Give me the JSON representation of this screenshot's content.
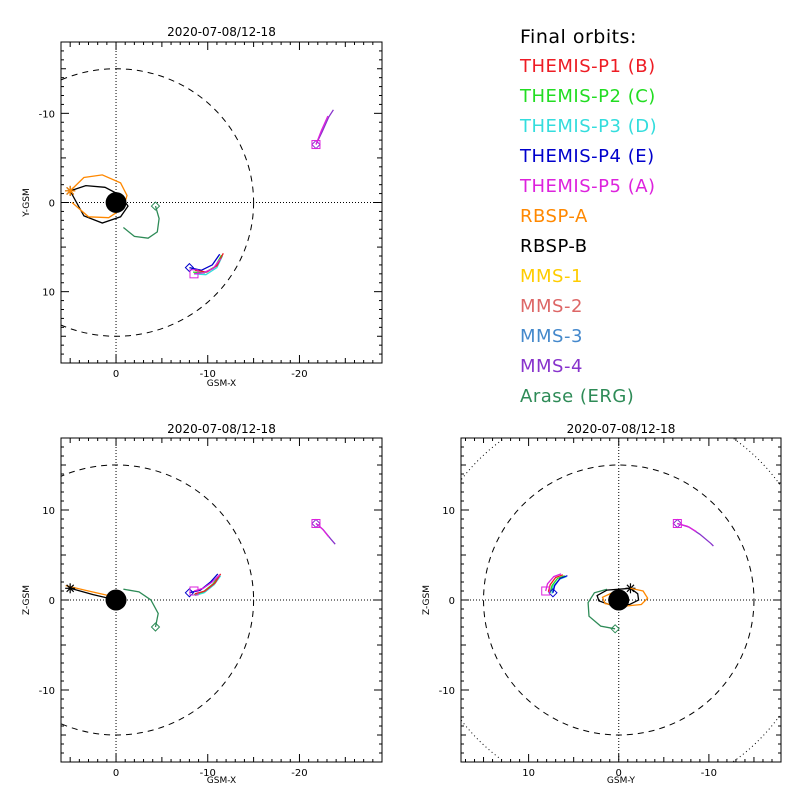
{
  "colors": {
    "background": "#ffffff",
    "axis": "#000000",
    "earth": "#000000"
  },
  "legend": {
    "title": "Final orbits:",
    "items": [
      {
        "label": "THEMIS-P1 (B)",
        "color": "#ee1c24"
      },
      {
        "label": "THEMIS-P2 (C)",
        "color": "#22dd22"
      },
      {
        "label": "THEMIS-P3 (D)",
        "color": "#33dddd"
      },
      {
        "label": "THEMIS-P4 (E)",
        "color": "#0000cc"
      },
      {
        "label": "THEMIS-P5 (A)",
        "color": "#dd22dd"
      },
      {
        "label": "RBSP-A",
        "color": "#ff8800"
      },
      {
        "label": "RBSP-B",
        "color": "#000000"
      },
      {
        "label": "MMS-1",
        "color": "#ffcc00"
      },
      {
        "label": "MMS-2",
        "color": "#dd6666"
      },
      {
        "label": "MMS-3",
        "color": "#4488cc"
      },
      {
        "label": "MMS-4",
        "color": "#8833cc"
      },
      {
        "label": "Arase (ERG)",
        "color": "#2e8b57"
      }
    ]
  },
  "chart_data": [
    {
      "type": "line",
      "title": "2020-07-08/12-18",
      "xlabel": "GSM-X",
      "ylabel": "Y-GSM",
      "xlim": [
        6,
        -29
      ],
      "ylim": [
        18,
        -18
      ],
      "xticks": [
        0,
        -10,
        -20
      ],
      "yticks": [
        -10,
        0,
        10
      ],
      "xtick_labels": [
        "0",
        "-10",
        "-20"
      ],
      "ytick_labels": [
        "-10",
        "0",
        "10"
      ],
      "reference_circle_radius": 15,
      "series": [
        {
          "color": "#000000",
          "points": [
            [
              5,
              -1.3
            ],
            [
              3.3,
              -1.9
            ],
            [
              1.2,
              -1.7
            ],
            [
              -0.5,
              -0.8
            ],
            [
              -1.3,
              0.4
            ],
            [
              -0.5,
              1.6
            ],
            [
              1.5,
              2.3
            ],
            [
              3.5,
              1.5
            ],
            [
              5,
              -1.3
            ]
          ],
          "marker": "asterisk",
          "marker_at": [
            5,
            -1.3
          ]
        },
        {
          "color": "#ff8800",
          "points": [
            [
              5,
              -1.3
            ],
            [
              3.5,
              -2.8
            ],
            [
              1.5,
              -3.1
            ],
            [
              -0.5,
              -2.2
            ],
            [
              -1.2,
              -0.8
            ],
            [
              -0.8,
              0.6
            ],
            [
              0.8,
              1.7
            ],
            [
              3,
              1.6
            ],
            [
              4.8,
              0
            ]
          ],
          "marker": "asterisk",
          "marker_at": [
            5,
            -1.3
          ]
        },
        {
          "color": "#2e8b57",
          "points": [
            [
              -4.3,
              0.4
            ],
            [
              -4.7,
              1.8
            ],
            [
              -4.5,
              3.3
            ],
            [
              -3.5,
              4
            ],
            [
              -2,
              3.8
            ],
            [
              -0.8,
              2.8
            ]
          ],
          "marker": "diamond",
          "marker_at": [
            -4.3,
            0.4
          ]
        },
        {
          "color": "#0000cc",
          "points": [
            [
              -8,
              7.3
            ],
            [
              -9.3,
              7.6
            ],
            [
              -10.5,
              7
            ],
            [
              -11.3,
              5.8
            ]
          ],
          "marker": "diamond",
          "marker_at": [
            -8,
            7.3
          ]
        },
        {
          "color": "#33dddd",
          "points": [
            [
              -8.5,
              8
            ],
            [
              -9.8,
              8.1
            ],
            [
              -11,
              7.3
            ],
            [
              -11.6,
              6
            ]
          ],
          "marker": "none",
          "marker_at": [
            -8.5,
            8
          ]
        },
        {
          "color": "#22dd22",
          "points": [
            [
              -8.4,
              7.8
            ],
            [
              -9.6,
              7.9
            ],
            [
              -10.8,
              7.2
            ],
            [
              -11.5,
              5.9
            ]
          ],
          "marker": "none",
          "marker_at": [
            -8.4,
            7.8
          ]
        },
        {
          "color": "#ee1c24",
          "points": [
            [
              -8.6,
              7.6
            ],
            [
              -9.9,
              7.8
            ],
            [
              -11,
              7.1
            ],
            [
              -11.7,
              5.7
            ]
          ],
          "marker": "none",
          "marker_at": [
            -8.6,
            7.6
          ]
        },
        {
          "color": "#dd22dd",
          "points": [
            [
              -8.5,
              8
            ],
            [
              -9.5,
              7.9
            ],
            [
              -10.6,
              7.4
            ],
            [
              -11.4,
              6.3
            ]
          ],
          "marker": "square",
          "marker_at": [
            -8.5,
            8
          ]
        },
        {
          "color": "#8833cc",
          "points": [
            [
              -21.8,
              -6.5
            ],
            [
              -22.5,
              -8
            ],
            [
              -23.2,
              -9.6
            ],
            [
              -23.7,
              -10.4
            ]
          ],
          "marker": "diamond",
          "marker_at": [
            -21.8,
            -6.5
          ]
        },
        {
          "color": "#dd22dd",
          "points": [
            [
              -21.8,
              -6.5
            ],
            [
              -22.4,
              -8.1
            ],
            [
              -23.1,
              -9.7
            ]
          ],
          "marker": "square",
          "marker_at": [
            -21.8,
            -6.5
          ]
        }
      ]
    },
    {
      "type": "line",
      "title": "2020-07-08/12-18",
      "xlabel": "GSM-X",
      "ylabel": "Z-GSM",
      "xlim": [
        6,
        -29
      ],
      "ylim": [
        -18,
        18
      ],
      "xticks": [
        0,
        -10,
        -20
      ],
      "yticks": [
        -10,
        0,
        10
      ],
      "xtick_labels": [
        "0",
        "-10",
        "-20"
      ],
      "ytick_labels": [
        "-10",
        "0",
        "10"
      ],
      "reference_circle_radius": 15,
      "series": [
        {
          "color": "#ff8800",
          "points": [
            [
              5.5,
              1.6
            ],
            [
              3,
              1
            ],
            [
              0,
              0.3
            ],
            [
              -0.8,
              0
            ]
          ],
          "marker": "none",
          "marker_at": [
            5.5,
            1.6
          ]
        },
        {
          "color": "#000000",
          "points": [
            [
              5,
              1.3
            ],
            [
              2.5,
              0.6
            ],
            [
              0,
              0
            ],
            [
              -0.8,
              -0.3
            ]
          ],
          "marker": "asterisk",
          "marker_at": [
            5,
            1.3
          ]
        },
        {
          "color": "#2e8b57",
          "points": [
            [
              -4.3,
              -3
            ],
            [
              -4.6,
              -1.5
            ],
            [
              -3.8,
              0
            ],
            [
              -2.5,
              0.9
            ],
            [
              -0.8,
              1.2
            ]
          ],
          "marker": "diamond",
          "marker_at": [
            -4.3,
            -3
          ]
        },
        {
          "color": "#33dddd",
          "points": [
            [
              -8.6,
              0.5
            ],
            [
              -9.6,
              0.8
            ],
            [
              -10.7,
              1.7
            ],
            [
              -11.4,
              2.7
            ]
          ],
          "marker": "none",
          "marker_at": [
            -8.6,
            0.5
          ]
        },
        {
          "color": "#22dd22",
          "points": [
            [
              -8.5,
              0.6
            ],
            [
              -9.5,
              0.9
            ],
            [
              -10.6,
              1.8
            ],
            [
              -11.3,
              2.8
            ]
          ],
          "marker": "none",
          "marker_at": [
            -8.5,
            0.6
          ]
        },
        {
          "color": "#ee1c24",
          "points": [
            [
              -8.6,
              0.7
            ],
            [
              -9.7,
              1
            ],
            [
              -10.8,
              1.9
            ],
            [
              -11.4,
              2.9
            ]
          ],
          "marker": "none",
          "marker_at": [
            -8.6,
            0.7
          ]
        },
        {
          "color": "#0000cc",
          "points": [
            [
              -8,
              0.8
            ],
            [
              -9.2,
              1.1
            ],
            [
              -10.3,
              2
            ],
            [
              -11.1,
              2.9
            ]
          ],
          "marker": "diamond",
          "marker_at": [
            -8,
            0.8
          ]
        },
        {
          "color": "#dd22dd",
          "points": [
            [
              -8.5,
              1
            ],
            [
              -9.5,
              1.3
            ],
            [
              -10.5,
              2
            ],
            [
              -11.3,
              2.8
            ]
          ],
          "marker": "square",
          "marker_at": [
            -8.5,
            1
          ]
        },
        {
          "color": "#8833cc",
          "points": [
            [
              -21.8,
              8.5
            ],
            [
              -22.6,
              7.8
            ],
            [
              -23.4,
              6.8
            ],
            [
              -23.9,
              6.2
            ]
          ],
          "marker": "diamond",
          "marker_at": [
            -21.8,
            8.5
          ]
        },
        {
          "color": "#dd22dd",
          "points": [
            [
              -21.8,
              8.5
            ],
            [
              -22.5,
              7.9
            ],
            [
              -23.2,
              7
            ]
          ],
          "marker": "square",
          "marker_at": [
            -21.8,
            8.5
          ]
        }
      ]
    },
    {
      "type": "line",
      "title": "2020-07-08/12-18",
      "xlabel": "GSM-Y",
      "ylabel": "Z-GSM",
      "xlim": [
        17.5,
        -18
      ],
      "ylim": [
        -18,
        18
      ],
      "xticks": [
        10,
        0,
        -10
      ],
      "yticks": [
        -10,
        0,
        10
      ],
      "xtick_labels": [
        "10",
        "0",
        "-10"
      ],
      "ytick_labels": [
        "-10",
        "0",
        "10"
      ],
      "reference_circle_radius": 15,
      "series": [
        {
          "color": "#2e8b57",
          "points": [
            [
              0.4,
              -3.2
            ],
            [
              2,
              -2.9
            ],
            [
              3.3,
              -1.8
            ],
            [
              3.4,
              -0.3
            ],
            [
              2.7,
              0.8
            ],
            [
              1.3,
              1.2
            ]
          ],
          "marker": "diamond",
          "marker_at": [
            0.4,
            -3.2
          ]
        },
        {
          "color": "#000000",
          "points": [
            [
              -1.3,
              1.3
            ],
            [
              -2.1,
              0.7
            ],
            [
              -2.2,
              0
            ],
            [
              -1.2,
              -0.5
            ],
            [
              0.8,
              -0.6
            ],
            [
              2.2,
              -0.1
            ],
            [
              2.4,
              0.5
            ],
            [
              1.3,
              1.1
            ],
            [
              -1.3,
              1.3
            ]
          ],
          "marker": "asterisk",
          "marker_at": [
            -1.3,
            1.3
          ]
        },
        {
          "color": "#ff8800",
          "points": [
            [
              -1.3,
              1.3
            ],
            [
              -2.7,
              1
            ],
            [
              -3.2,
              0.2
            ],
            [
              -2.5,
              -0.5
            ],
            [
              -0.5,
              -0.7
            ],
            [
              1.5,
              -0.4
            ],
            [
              1.8,
              0.3
            ],
            [
              0.5,
              0.9
            ]
          ],
          "marker": "none",
          "marker_at": [
            -1.3,
            1.3
          ]
        },
        {
          "color": "#33dddd",
          "points": [
            [
              7.4,
              0.7
            ],
            [
              7.3,
              1.5
            ],
            [
              6.6,
              2.3
            ],
            [
              5.8,
              2.6
            ]
          ],
          "marker": "none",
          "marker_at": [
            7.4,
            0.7
          ]
        },
        {
          "color": "#22dd22",
          "points": [
            [
              7.6,
              0.8
            ],
            [
              7.4,
              1.6
            ],
            [
              6.8,
              2.4
            ],
            [
              6,
              2.7
            ]
          ],
          "marker": "none",
          "marker_at": [
            7.6,
            0.8
          ]
        },
        {
          "color": "#ee1c24",
          "points": [
            [
              7.8,
              0.9
            ],
            [
              7.6,
              1.7
            ],
            [
              7,
              2.5
            ],
            [
              6.2,
              2.8
            ]
          ],
          "marker": "none",
          "marker_at": [
            7.8,
            0.9
          ]
        },
        {
          "color": "#0000cc",
          "points": [
            [
              7.3,
              0.8
            ],
            [
              7.1,
              1.6
            ],
            [
              6.5,
              2.4
            ],
            [
              5.7,
              2.7
            ]
          ],
          "marker": "diamond",
          "marker_at": [
            7.3,
            0.8
          ]
        },
        {
          "color": "#dd22dd",
          "points": [
            [
              8.1,
              1
            ],
            [
              7.9,
              1.8
            ],
            [
              7.2,
              2.6
            ],
            [
              6.4,
              2.9
            ]
          ],
          "marker": "square",
          "marker_at": [
            8.1,
            1
          ]
        },
        {
          "color": "#8833cc",
          "points": [
            [
              -6.5,
              8.5
            ],
            [
              -7.8,
              8.1
            ],
            [
              -9,
              7.3
            ],
            [
              -10.2,
              6.3
            ],
            [
              -10.5,
              6
            ]
          ],
          "marker": "diamond",
          "marker_at": [
            -6.5,
            8.5
          ]
        },
        {
          "color": "#dd22dd",
          "points": [
            [
              -6.5,
              8.5
            ],
            [
              -7.6,
              8.2
            ],
            [
              -8.6,
              7.6
            ]
          ],
          "marker": "square",
          "marker_at": [
            -6.5,
            8.5
          ]
        }
      ]
    }
  ]
}
